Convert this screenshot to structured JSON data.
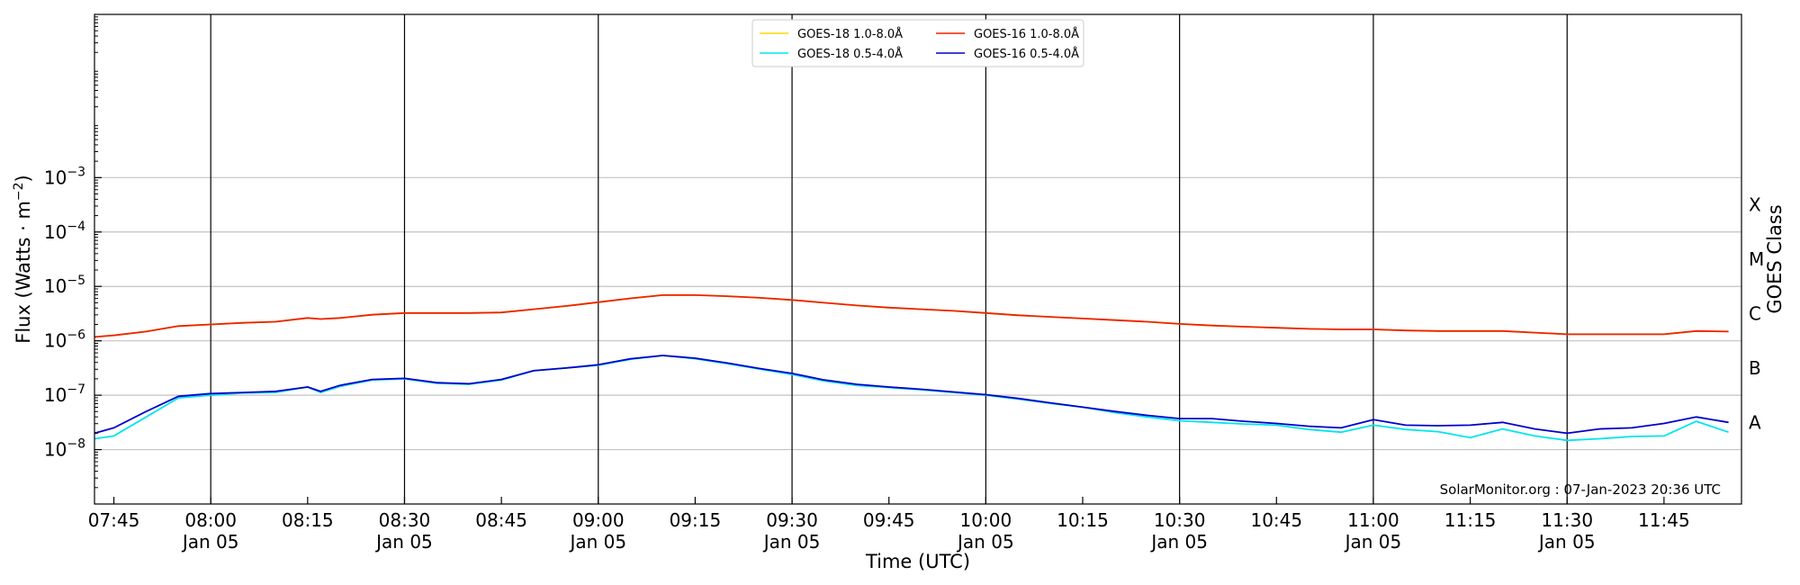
{
  "chart_data": {
    "type": "line",
    "title": "",
    "xlabel": "Time (UTC)",
    "ylabel": "Flux (Watts · m",
    "ylabel_superscript": "−2",
    "ylabel_close": ")",
    "y_scale": "log",
    "ylim_exponent": [
      -9,
      0
    ],
    "grid": "horizontal",
    "xlim_minutes_after_0745": [
      -3,
      252
    ],
    "y_ticks": [
      {
        "exp": -3,
        "base": "10",
        "power": "−3"
      },
      {
        "exp": -4,
        "base": "10",
        "power": "−4"
      },
      {
        "exp": -5,
        "base": "10",
        "power": "−5"
      },
      {
        "exp": -6,
        "base": "10",
        "power": "−6"
      },
      {
        "exp": -7,
        "base": "10",
        "power": "−7"
      },
      {
        "exp": -8,
        "base": "10",
        "power": "−8"
      }
    ],
    "x_ticks": [
      {
        "label": "07:45",
        "sub": "",
        "t": 0
      },
      {
        "label": "08:00",
        "sub": "Jan 05",
        "t": 15
      },
      {
        "label": "08:15",
        "sub": "",
        "t": 30
      },
      {
        "label": "08:30",
        "sub": "Jan 05",
        "t": 45
      },
      {
        "label": "08:45",
        "sub": "",
        "t": 60
      },
      {
        "label": "09:00",
        "sub": "Jan 05",
        "t": 75
      },
      {
        "label": "09:15",
        "sub": "",
        "t": 90
      },
      {
        "label": "09:30",
        "sub": "Jan 05",
        "t": 105
      },
      {
        "label": "09:45",
        "sub": "",
        "t": 120
      },
      {
        "label": "10:00",
        "sub": "Jan 05",
        "t": 135
      },
      {
        "label": "10:15",
        "sub": "",
        "t": 150
      },
      {
        "label": "10:30",
        "sub": "Jan 05",
        "t": 165
      },
      {
        "label": "10:45",
        "sub": "",
        "t": 180
      },
      {
        "label": "11:00",
        "sub": "Jan 05",
        "t": 195
      },
      {
        "label": "11:15",
        "sub": "",
        "t": 210
      },
      {
        "label": "11:30",
        "sub": "Jan 05",
        "t": 225
      },
      {
        "label": "11:45",
        "sub": "",
        "t": 240
      }
    ],
    "right_axis": {
      "label": "GOES Class",
      "classes": [
        {
          "label": "A",
          "exp": -7.5
        },
        {
          "label": "B",
          "exp": -6.5
        },
        {
          "label": "C",
          "exp": -5.5
        },
        {
          "label": "M",
          "exp": -4.5
        },
        {
          "label": "X",
          "exp": -3.5
        }
      ]
    },
    "legend_placement": "top-center",
    "legend": [
      {
        "name": "GOES-18 1.0-8.0Å",
        "color": "#ffd700"
      },
      {
        "name": "GOES-18 0.5-4.0Å",
        "color": "#00e5ee"
      },
      {
        "name": "GOES-16 1.0-8.0Å",
        "color": "#ee2200"
      },
      {
        "name": "GOES-16 0.5-4.0Å",
        "color": "#0000cc"
      }
    ],
    "series": [
      {
        "name": "GOES-18 1.0-8.0Å",
        "color": "#ffd700",
        "t": [
          -3,
          0,
          5,
          10,
          15,
          20,
          25,
          30,
          32,
          35,
          40,
          45,
          50,
          55,
          60,
          65,
          70,
          75,
          80,
          85,
          90,
          95,
          100,
          105,
          110,
          115,
          120,
          125,
          130,
          135,
          140,
          145,
          150,
          155,
          160,
          165,
          170,
          175,
          180,
          185,
          190,
          195,
          200,
          205,
          210,
          215,
          220,
          225,
          230,
          235,
          240,
          245,
          250
        ],
        "exp": [
          -5.93,
          -5.9,
          -5.83,
          -5.73,
          -5.7,
          -5.67,
          -5.65,
          -5.58,
          -5.6,
          -5.58,
          -5.52,
          -5.49,
          -5.49,
          -5.49,
          -5.48,
          -5.42,
          -5.36,
          -5.29,
          -5.22,
          -5.16,
          -5.16,
          -5.18,
          -5.21,
          -5.25,
          -5.3,
          -5.35,
          -5.39,
          -5.42,
          -5.45,
          -5.49,
          -5.53,
          -5.56,
          -5.59,
          -5.62,
          -5.65,
          -5.69,
          -5.72,
          -5.74,
          -5.76,
          -5.78,
          -5.79,
          -5.79,
          -5.81,
          -5.82,
          -5.82,
          -5.82,
          -5.85,
          -5.88,
          -5.88,
          -5.88,
          -5.88,
          -5.82,
          -5.83
        ]
      },
      {
        "name": "GOES-16 1.0-8.0Å",
        "color": "#ee2200",
        "t": [
          -3,
          0,
          5,
          10,
          15,
          20,
          25,
          30,
          32,
          35,
          40,
          45,
          50,
          55,
          60,
          65,
          70,
          75,
          80,
          85,
          90,
          95,
          100,
          105,
          110,
          115,
          120,
          125,
          130,
          135,
          140,
          145,
          150,
          155,
          160,
          165,
          170,
          175,
          180,
          185,
          190,
          195,
          200,
          205,
          210,
          215,
          220,
          225,
          230,
          235,
          240,
          245,
          250
        ],
        "exp": [
          -5.93,
          -5.9,
          -5.83,
          -5.73,
          -5.7,
          -5.67,
          -5.65,
          -5.58,
          -5.6,
          -5.58,
          -5.52,
          -5.49,
          -5.49,
          -5.49,
          -5.48,
          -5.42,
          -5.36,
          -5.29,
          -5.22,
          -5.16,
          -5.16,
          -5.18,
          -5.21,
          -5.25,
          -5.3,
          -5.35,
          -5.39,
          -5.42,
          -5.45,
          -5.49,
          -5.53,
          -5.56,
          -5.59,
          -5.62,
          -5.65,
          -5.69,
          -5.72,
          -5.74,
          -5.76,
          -5.78,
          -5.79,
          -5.79,
          -5.81,
          -5.82,
          -5.82,
          -5.82,
          -5.85,
          -5.88,
          -5.88,
          -5.88,
          -5.88,
          -5.82,
          -5.83
        ]
      },
      {
        "name": "GOES-18 0.5-4.0Å",
        "color": "#00e5ee",
        "t": [
          -3,
          0,
          5,
          10,
          15,
          20,
          25,
          30,
          32,
          35,
          40,
          45,
          50,
          55,
          60,
          65,
          70,
          75,
          80,
          85,
          90,
          95,
          100,
          105,
          110,
          115,
          120,
          125,
          130,
          135,
          140,
          145,
          150,
          155,
          160,
          165,
          170,
          175,
          180,
          185,
          190,
          195,
          200,
          205,
          210,
          215,
          220,
          225,
          230,
          235,
          240,
          245,
          250
        ],
        "exp": [
          -7.8,
          -7.75,
          -7.4,
          -7.05,
          -7.0,
          -6.96,
          -6.95,
          -6.85,
          -6.95,
          -6.84,
          -6.72,
          -6.7,
          -6.78,
          -6.8,
          -6.72,
          -6.55,
          -6.5,
          -6.45,
          -6.34,
          -6.27,
          -6.33,
          -6.42,
          -6.52,
          -6.62,
          -6.74,
          -6.82,
          -6.86,
          -6.9,
          -6.95,
          -7.0,
          -7.07,
          -7.15,
          -7.22,
          -7.32,
          -7.4,
          -7.47,
          -7.5,
          -7.53,
          -7.55,
          -7.63,
          -7.68,
          -7.55,
          -7.63,
          -7.67,
          -7.78,
          -7.62,
          -7.75,
          -7.83,
          -7.8,
          -7.76,
          -7.75,
          -7.48,
          -7.68
        ]
      },
      {
        "name": "GOES-16 0.5-4.0Å",
        "color": "#0000cc",
        "t": [
          -3,
          0,
          5,
          10,
          15,
          20,
          25,
          30,
          32,
          35,
          40,
          45,
          50,
          55,
          60,
          65,
          70,
          75,
          80,
          85,
          90,
          95,
          100,
          105,
          110,
          115,
          120,
          125,
          130,
          135,
          140,
          145,
          150,
          155,
          160,
          165,
          170,
          175,
          180,
          185,
          190,
          195,
          200,
          205,
          210,
          215,
          220,
          225,
          230,
          235,
          240,
          245,
          250
        ],
        "exp": [
          -7.7,
          -7.6,
          -7.3,
          -7.02,
          -6.97,
          -6.95,
          -6.93,
          -6.85,
          -6.93,
          -6.82,
          -6.71,
          -6.69,
          -6.77,
          -6.79,
          -6.71,
          -6.55,
          -6.5,
          -6.44,
          -6.33,
          -6.27,
          -6.32,
          -6.41,
          -6.51,
          -6.6,
          -6.72,
          -6.8,
          -6.85,
          -6.89,
          -6.94,
          -6.99,
          -7.06,
          -7.14,
          -7.22,
          -7.3,
          -7.37,
          -7.43,
          -7.43,
          -7.48,
          -7.52,
          -7.57,
          -7.6,
          -7.45,
          -7.55,
          -7.56,
          -7.55,
          -7.5,
          -7.62,
          -7.7,
          -7.62,
          -7.6,
          -7.52,
          -7.4,
          -7.5
        ]
      }
    ],
    "credit": "SolarMonitor.org : 07-Jan-2023 20:36 UTC"
  }
}
